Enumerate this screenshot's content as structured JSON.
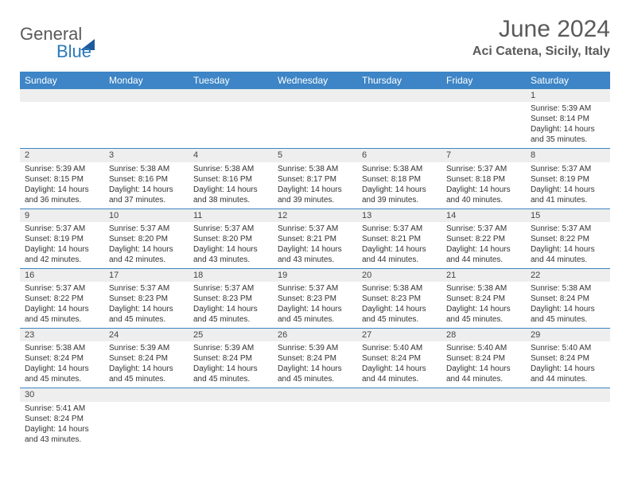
{
  "logo": {
    "part1": "General",
    "part2": "Blue"
  },
  "title": "June 2024",
  "location": "Aci Catena, Sicily, Italy",
  "colors": {
    "header_bg": "#3d85c6",
    "header_fg": "#ffffff",
    "daynum_bg": "#eeeeee",
    "border": "#3d85c6",
    "text": "#333333"
  },
  "weekdays": [
    "Sunday",
    "Monday",
    "Tuesday",
    "Wednesday",
    "Thursday",
    "Friday",
    "Saturday"
  ],
  "weeks": [
    [
      null,
      null,
      null,
      null,
      null,
      null,
      {
        "n": "1",
        "sr": "Sunrise: 5:39 AM",
        "ss": "Sunset: 8:14 PM",
        "dl": "Daylight: 14 hours and 35 minutes."
      }
    ],
    [
      {
        "n": "2",
        "sr": "Sunrise: 5:39 AM",
        "ss": "Sunset: 8:15 PM",
        "dl": "Daylight: 14 hours and 36 minutes."
      },
      {
        "n": "3",
        "sr": "Sunrise: 5:38 AM",
        "ss": "Sunset: 8:16 PM",
        "dl": "Daylight: 14 hours and 37 minutes."
      },
      {
        "n": "4",
        "sr": "Sunrise: 5:38 AM",
        "ss": "Sunset: 8:16 PM",
        "dl": "Daylight: 14 hours and 38 minutes."
      },
      {
        "n": "5",
        "sr": "Sunrise: 5:38 AM",
        "ss": "Sunset: 8:17 PM",
        "dl": "Daylight: 14 hours and 39 minutes."
      },
      {
        "n": "6",
        "sr": "Sunrise: 5:38 AM",
        "ss": "Sunset: 8:18 PM",
        "dl": "Daylight: 14 hours and 39 minutes."
      },
      {
        "n": "7",
        "sr": "Sunrise: 5:37 AM",
        "ss": "Sunset: 8:18 PM",
        "dl": "Daylight: 14 hours and 40 minutes."
      },
      {
        "n": "8",
        "sr": "Sunrise: 5:37 AM",
        "ss": "Sunset: 8:19 PM",
        "dl": "Daylight: 14 hours and 41 minutes."
      }
    ],
    [
      {
        "n": "9",
        "sr": "Sunrise: 5:37 AM",
        "ss": "Sunset: 8:19 PM",
        "dl": "Daylight: 14 hours and 42 minutes."
      },
      {
        "n": "10",
        "sr": "Sunrise: 5:37 AM",
        "ss": "Sunset: 8:20 PM",
        "dl": "Daylight: 14 hours and 42 minutes."
      },
      {
        "n": "11",
        "sr": "Sunrise: 5:37 AM",
        "ss": "Sunset: 8:20 PM",
        "dl": "Daylight: 14 hours and 43 minutes."
      },
      {
        "n": "12",
        "sr": "Sunrise: 5:37 AM",
        "ss": "Sunset: 8:21 PM",
        "dl": "Daylight: 14 hours and 43 minutes."
      },
      {
        "n": "13",
        "sr": "Sunrise: 5:37 AM",
        "ss": "Sunset: 8:21 PM",
        "dl": "Daylight: 14 hours and 44 minutes."
      },
      {
        "n": "14",
        "sr": "Sunrise: 5:37 AM",
        "ss": "Sunset: 8:22 PM",
        "dl": "Daylight: 14 hours and 44 minutes."
      },
      {
        "n": "15",
        "sr": "Sunrise: 5:37 AM",
        "ss": "Sunset: 8:22 PM",
        "dl": "Daylight: 14 hours and 44 minutes."
      }
    ],
    [
      {
        "n": "16",
        "sr": "Sunrise: 5:37 AM",
        "ss": "Sunset: 8:22 PM",
        "dl": "Daylight: 14 hours and 45 minutes."
      },
      {
        "n": "17",
        "sr": "Sunrise: 5:37 AM",
        "ss": "Sunset: 8:23 PM",
        "dl": "Daylight: 14 hours and 45 minutes."
      },
      {
        "n": "18",
        "sr": "Sunrise: 5:37 AM",
        "ss": "Sunset: 8:23 PM",
        "dl": "Daylight: 14 hours and 45 minutes."
      },
      {
        "n": "19",
        "sr": "Sunrise: 5:37 AM",
        "ss": "Sunset: 8:23 PM",
        "dl": "Daylight: 14 hours and 45 minutes."
      },
      {
        "n": "20",
        "sr": "Sunrise: 5:38 AM",
        "ss": "Sunset: 8:23 PM",
        "dl": "Daylight: 14 hours and 45 minutes."
      },
      {
        "n": "21",
        "sr": "Sunrise: 5:38 AM",
        "ss": "Sunset: 8:24 PM",
        "dl": "Daylight: 14 hours and 45 minutes."
      },
      {
        "n": "22",
        "sr": "Sunrise: 5:38 AM",
        "ss": "Sunset: 8:24 PM",
        "dl": "Daylight: 14 hours and 45 minutes."
      }
    ],
    [
      {
        "n": "23",
        "sr": "Sunrise: 5:38 AM",
        "ss": "Sunset: 8:24 PM",
        "dl": "Daylight: 14 hours and 45 minutes."
      },
      {
        "n": "24",
        "sr": "Sunrise: 5:39 AM",
        "ss": "Sunset: 8:24 PM",
        "dl": "Daylight: 14 hours and 45 minutes."
      },
      {
        "n": "25",
        "sr": "Sunrise: 5:39 AM",
        "ss": "Sunset: 8:24 PM",
        "dl": "Daylight: 14 hours and 45 minutes."
      },
      {
        "n": "26",
        "sr": "Sunrise: 5:39 AM",
        "ss": "Sunset: 8:24 PM",
        "dl": "Daylight: 14 hours and 45 minutes."
      },
      {
        "n": "27",
        "sr": "Sunrise: 5:40 AM",
        "ss": "Sunset: 8:24 PM",
        "dl": "Daylight: 14 hours and 44 minutes."
      },
      {
        "n": "28",
        "sr": "Sunrise: 5:40 AM",
        "ss": "Sunset: 8:24 PM",
        "dl": "Daylight: 14 hours and 44 minutes."
      },
      {
        "n": "29",
        "sr": "Sunrise: 5:40 AM",
        "ss": "Sunset: 8:24 PM",
        "dl": "Daylight: 14 hours and 44 minutes."
      }
    ],
    [
      {
        "n": "30",
        "sr": "Sunrise: 5:41 AM",
        "ss": "Sunset: 8:24 PM",
        "dl": "Daylight: 14 hours and 43 minutes."
      },
      null,
      null,
      null,
      null,
      null,
      null
    ]
  ]
}
